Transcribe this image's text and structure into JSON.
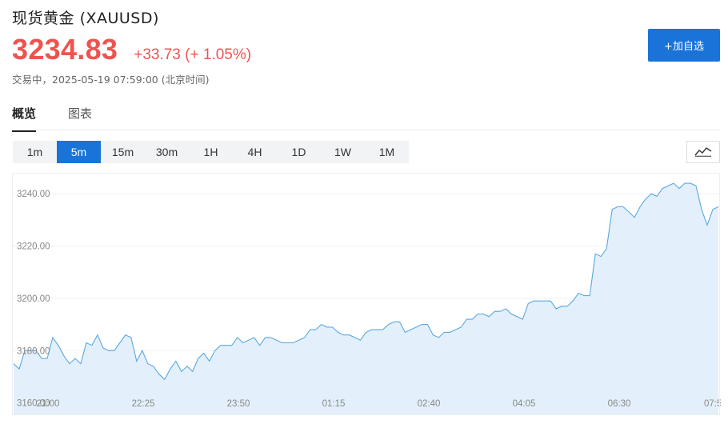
{
  "header": {
    "title": "现货黄金",
    "symbol": "(XAUUSD)",
    "price": "3234.83",
    "change": "+33.73",
    "change_pct": "(+ 1.05%)",
    "status": "交易中，2025-05-19 07:59:00 (北京时间)",
    "add_button": "+加自选"
  },
  "colors": {
    "up": "#ef5350",
    "accent": "#1a73d9",
    "line": "#5aa8e0",
    "fill": "#e3f0fb"
  },
  "tabs": [
    {
      "label": "概览",
      "active": true
    },
    {
      "label": "图表",
      "active": false
    }
  ],
  "periods": [
    {
      "label": "1m"
    },
    {
      "label": "5m",
      "active": true
    },
    {
      "label": "15m"
    },
    {
      "label": "30m"
    },
    {
      "label": "1H"
    },
    {
      "label": "4H"
    },
    {
      "label": "1D"
    },
    {
      "label": "1W"
    },
    {
      "label": "1M"
    }
  ],
  "chart_type_icon": "line-chart-icon",
  "chart_data": {
    "type": "area",
    "ylim": [
      3155,
      3248
    ],
    "yticks": [
      {
        "value": 3160,
        "label": "3160.00"
      },
      {
        "value": 3180,
        "label": "3180.00"
      },
      {
        "value": 3200,
        "label": "3200.00"
      },
      {
        "value": 3220,
        "label": "3220.00"
      },
      {
        "value": 3240,
        "label": "3240.00"
      }
    ],
    "xticks": [
      "21:00",
      "22:25",
      "23:50",
      "01:15",
      "02:40",
      "04:05",
      "06:30",
      "07:5"
    ],
    "values": [
      3175,
      3173,
      3180,
      3180,
      3180,
      3177,
      3177,
      3185,
      3182,
      3178,
      3175,
      3177,
      3175,
      3183,
      3182,
      3186,
      3181,
      3180,
      3180,
      3183,
      3186,
      3185,
      3176,
      3180,
      3175,
      3174,
      3171,
      3169,
      3173,
      3176,
      3172,
      3174,
      3172,
      3177,
      3179,
      3176,
      3180,
      3182,
      3182,
      3182,
      3185,
      3183,
      3184,
      3185,
      3182,
      3185,
      3185,
      3184,
      3183,
      3183,
      3183,
      3184,
      3185,
      3188,
      3188,
      3190,
      3189,
      3189,
      3187,
      3186,
      3186,
      3185,
      3184,
      3187,
      3188,
      3188,
      3188,
      3190,
      3191,
      3191,
      3187,
      3188,
      3189,
      3190,
      3190,
      3186,
      3185,
      3187,
      3187,
      3188,
      3189,
      3192,
      3192,
      3194,
      3194,
      3193,
      3195,
      3195,
      3196,
      3194,
      3193,
      3192,
      3198,
      3199,
      3199,
      3199,
      3199,
      3196,
      3197,
      3197,
      3199,
      3202,
      3201,
      3201,
      3217,
      3216,
      3219,
      3234,
      3235,
      3235,
      3233,
      3231,
      3235,
      3238,
      3240,
      3239,
      3242,
      3243,
      3244,
      3242,
      3244,
      3244,
      3243,
      3234,
      3228,
      3234,
      3235
    ]
  }
}
